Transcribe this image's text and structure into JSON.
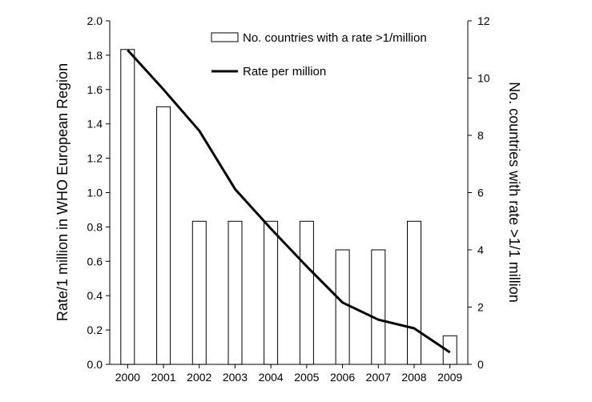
{
  "chart_data": {
    "type": "bar+line",
    "categories": [
      "2000",
      "2001",
      "2002",
      "2003",
      "2004",
      "2005",
      "2006",
      "2007",
      "2008",
      "2009"
    ],
    "series": [
      {
        "name": "No. countries with a rate >1/million",
        "type": "bar",
        "axis": "right",
        "values": [
          11,
          9,
          5,
          5,
          5,
          5,
          4,
          4,
          5,
          1
        ]
      },
      {
        "name": "Rate per million",
        "type": "line",
        "axis": "left",
        "values": [
          1.83,
          1.6,
          1.36,
          1.02,
          0.79,
          0.57,
          0.36,
          0.26,
          0.21,
          0.07
        ]
      }
    ],
    "y_left": {
      "label": "Rate/1 million in WHO European Region",
      "ylim": [
        0,
        2
      ],
      "ticks": [
        "0.0",
        "0.2",
        "0.4",
        "0.6",
        "0.8",
        "1.0",
        "1.2",
        "1.4",
        "1.6",
        "1.8",
        "2.0"
      ]
    },
    "y_right": {
      "label": "No. countries with rate >1/1 million",
      "ylim": [
        0,
        12
      ],
      "ticks": [
        "0",
        "2",
        "4",
        "6",
        "8",
        "10",
        "12"
      ]
    },
    "grid": false,
    "legend_position": "top-right"
  }
}
